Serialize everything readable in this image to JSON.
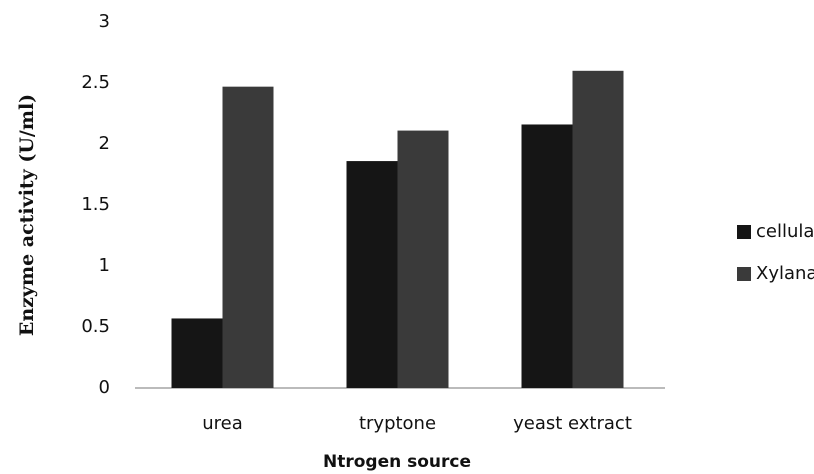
{
  "chart_data": {
    "type": "bar",
    "x_label": "Ntrogen source",
    "y_label": "Enzyme activity (U/ml)",
    "categories": [
      "urea",
      "tryptone",
      "yeast extract"
    ],
    "series": [
      {
        "name": "cellulase",
        "color": "#151515",
        "values": [
          0.57,
          1.86,
          2.16
        ]
      },
      {
        "name": "Xylanase",
        "color": "#3a3a3a",
        "values": [
          2.47,
          2.11,
          2.6
        ]
      }
    ],
    "ylim": [
      0,
      3
    ],
    "yticks": [
      0,
      0.5,
      1,
      1.5,
      2,
      2.5,
      3
    ],
    "grid": false,
    "legend": "right"
  }
}
